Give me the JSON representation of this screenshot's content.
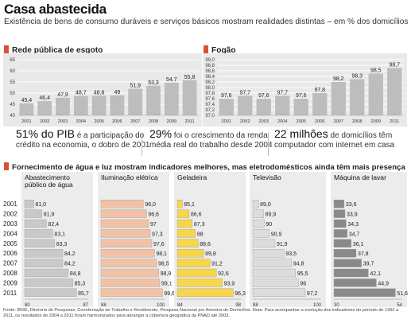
{
  "title": "Casa abastecida",
  "subtitle": "Existência de bens de consumo duráveis e serviços básicos mostram realidades distintas – em % dos domicílios",
  "section1": {
    "esgoto_title": "Rede pública de esgoto",
    "fogao_title": "Fogão"
  },
  "stats": [
    {
      "big": "51% do PIB",
      "line1": " é a participação do",
      "line2": "crédito na economia, o dobro de 2001"
    },
    {
      "big": "29%",
      "line1": " foi o crescimento da renda",
      "line2": "média real do trabalho desde 2004"
    },
    {
      "big": "22 milhões",
      "line1": " de domicílios têm",
      "line2": "computador com internet em casa"
    }
  ],
  "section2_title": "Fornecimento de água e luz mostram indicadores melhores, mas eletrodomésticos ainda têm mais presença",
  "source": "Fonte: IBGE, Diretoria de Pesquisas, Coordenação de Trabalho e Rendimento, Pesquisa Nacional por Amostra de Domicílios. Nota: Para acompanhar a evolução dos indicadores do período de 1992 a 2011, os resultados de 2004 a 2011 foram harmonizados para abranger a cobertura geográfica da PNAD até 2003.",
  "colors": {
    "accent": "#d9503a",
    "bar_gray": "#bdbdbd",
    "panel_bg": "#e9e9e9"
  },
  "chart_data": [
    {
      "type": "bar",
      "title": "Rede pública de esgoto",
      "categories": [
        "2001",
        "2002",
        "2003",
        "2004",
        "2005",
        "2006",
        "2007",
        "2008",
        "2009",
        "2011"
      ],
      "values": [
        45.4,
        46.4,
        47.9,
        48.7,
        48.8,
        49,
        51.9,
        53.3,
        54.7,
        55.8
      ],
      "labels": [
        "45,4",
        "46,4",
        "47,9",
        "48,7",
        "48,8",
        "49",
        "51,9",
        "53,3",
        "54,7",
        "55,8"
      ],
      "ylim": [
        40,
        65
      ],
      "yticks": [
        "40",
        "45",
        "50",
        "55",
        "60",
        "65"
      ],
      "grid": true
    },
    {
      "type": "bar",
      "title": "Fogão",
      "categories": [
        "2001",
        "2002",
        "2003",
        "2004",
        "2005",
        "2006",
        "2007",
        "2008",
        "2009",
        "2011"
      ],
      "values": [
        97.6,
        97.7,
        97.6,
        97.7,
        97.6,
        97.8,
        98.2,
        98.3,
        98.5,
        98.7
      ],
      "labels": [
        "97,6",
        "97,7",
        "97,6",
        "97,7",
        "97,6",
        "97,8",
        "98,2",
        "98,3",
        "98,5",
        "98,7"
      ],
      "ylim": [
        97.0,
        99.0
      ],
      "yticks": [
        "97,0",
        "97,2",
        "97,4",
        "97,6",
        "97,8",
        "98,0",
        "98,2",
        "98,4",
        "98,6",
        "98,8",
        "99,0"
      ],
      "grid": true
    },
    {
      "type": "bar",
      "orientation": "horizontal",
      "years": [
        "2001",
        "2002",
        "2003",
        "2004",
        "2005",
        "2006",
        "2007",
        "2008",
        "2009",
        "2011"
      ],
      "series": [
        {
          "name": "Abastecimento público de água",
          "values": [
            81.0,
            81.9,
            82.4,
            83.1,
            83.3,
            84.2,
            84.2,
            84.8,
            85.3,
            85.7
          ],
          "labels": [
            "81,0",
            "81,9",
            "82,4",
            "83,1",
            "83,3",
            "84,2",
            "84,2",
            "84,8",
            "85,3",
            "85,7"
          ],
          "xlim": [
            80,
            87
          ],
          "color": "#c9c9c9"
        },
        {
          "name": "Iluminação elétrica",
          "values": [
            96.0,
            96.6,
            97,
            97.3,
            97.6,
            98.1,
            98.5,
            98.9,
            99.1,
            99.6
          ],
          "labels": [
            "96,0",
            "96,6",
            "97",
            "97,3",
            "97,6",
            "98,1",
            "98,5",
            "98,9",
            "99,1",
            "99,6"
          ],
          "xlim": [
            88,
            100
          ],
          "color": "#f2c2a6"
        },
        {
          "name": "Geladeira",
          "values": [
            85.1,
            86.6,
            87.3,
            88,
            88.6,
            89.8,
            91.2,
            92.6,
            93.9,
            96.3
          ],
          "labels": [
            "85,1",
            "86,6",
            "87,3",
            "88",
            "88,6",
            "89,8",
            "91,2",
            "92,6",
            "93,9",
            "96,3"
          ],
          "xlim": [
            84,
            98
          ],
          "color": "#f6d64a"
        },
        {
          "name": "Televisão",
          "values": [
            89.0,
            89.9,
            90,
            90.9,
            91.9,
            93.5,
            94.8,
            95.5,
            96,
            97.2
          ],
          "labels": [
            "89,0",
            "89,9",
            "90",
            "90,9",
            "91,9",
            "93,5",
            "94,8",
            "95,5",
            "96",
            "97,2"
          ],
          "xlim": [
            88,
            100
          ],
          "color": "#dcdcdc"
        },
        {
          "name": "Máquina de lavar",
          "values": [
            33.6,
            33.9,
            34.3,
            34.7,
            36.1,
            37.8,
            39.7,
            42.1,
            44.9,
            51.6
          ],
          "labels": [
            "33,6",
            "33,9",
            "34,3",
            "34,7",
            "36,1",
            "37,8",
            "39,7",
            "42,1",
            "44,9",
            "51,6"
          ],
          "xlim": [
            30,
            54
          ],
          "color": "#8a8a8a"
        }
      ],
      "panel_axis_labels": [
        [
          "80",
          "87"
        ],
        [
          "88",
          "100"
        ],
        [
          "84",
          "98"
        ],
        [
          "88",
          "100"
        ],
        [
          "30",
          "54"
        ]
      ]
    }
  ]
}
